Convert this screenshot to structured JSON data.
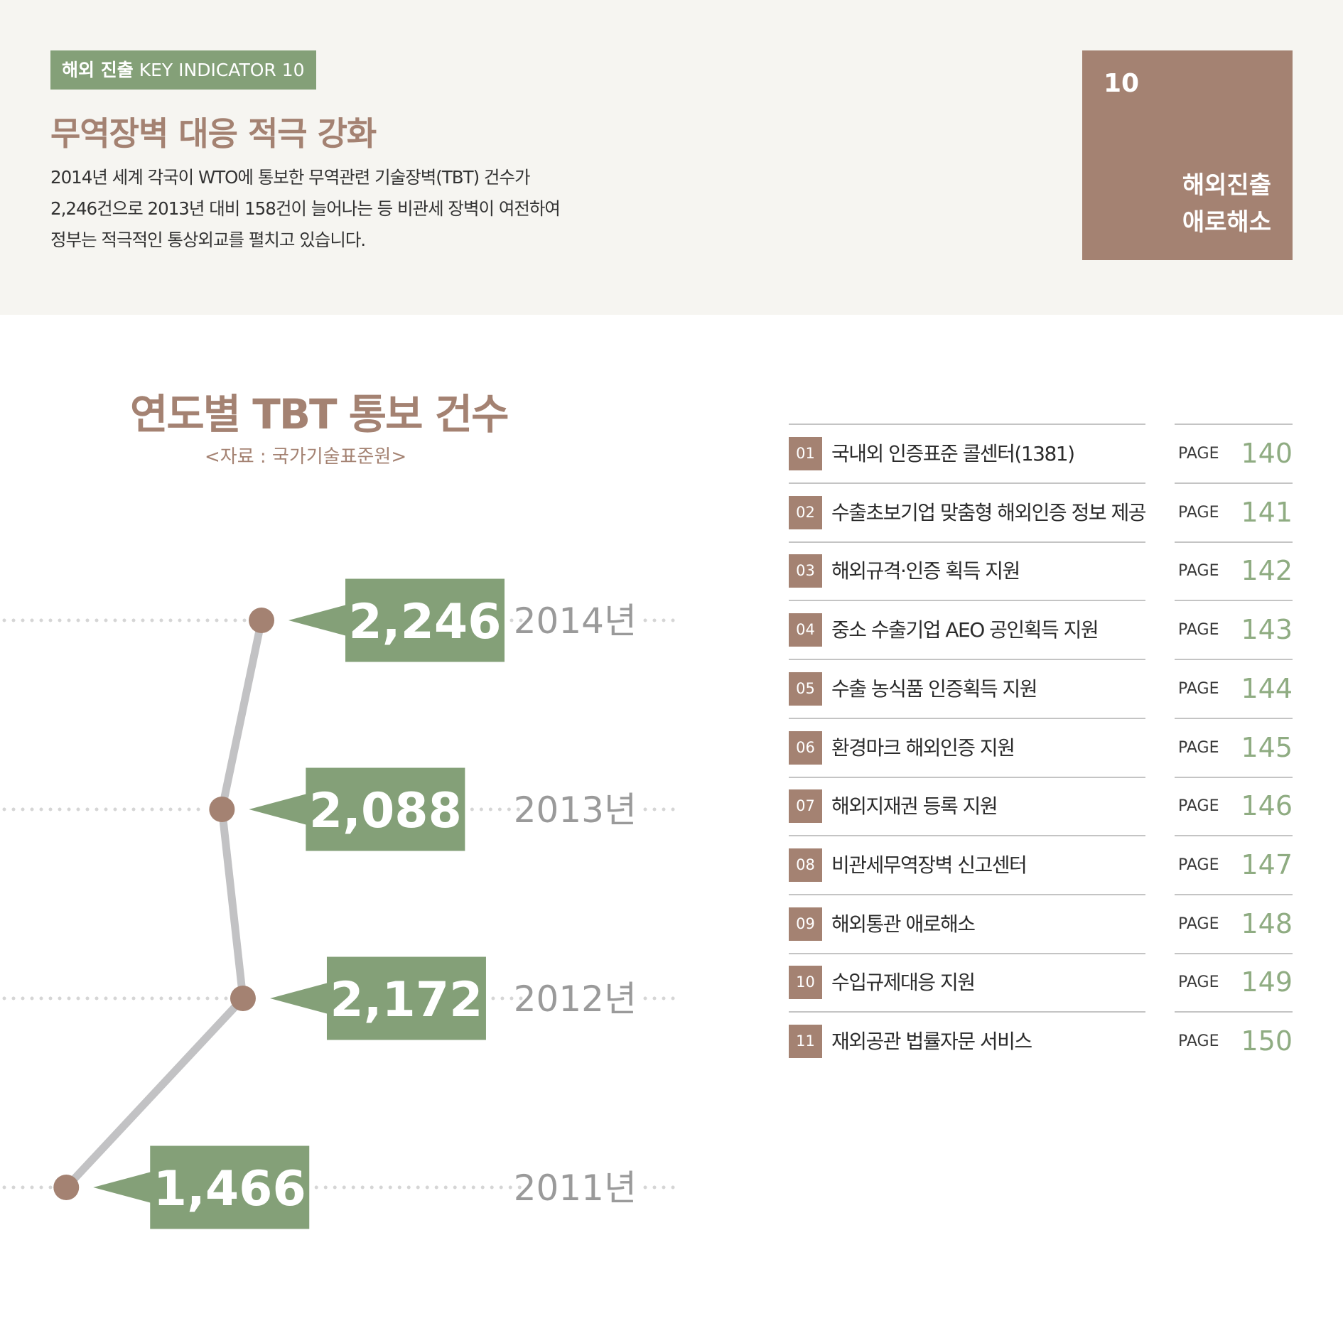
{
  "header": {
    "badge_bold": "해외 진출",
    "badge_rest": "KEY INDICATOR 10",
    "headline": "무역장벽 대응 적극 강화",
    "description": [
      "2014년 세계 각국이 WTO에 통보한 무역관련 기술장벽(TBT) 건수가",
      "2,246건으로 2013년 대비 158건이 늘어나는 등 비관세 장벽이 여전하여",
      "정부는 적극적인 통상외교를 펼치고 있습니다."
    ]
  },
  "section_box": {
    "number": "10",
    "title_line1": "해외진출",
    "title_line2": "애로해소"
  },
  "chart_data": {
    "type": "line",
    "title": "연도별 TBT 통보 건수",
    "source": "<자료 : 국가기술표준원>",
    "points": [
      {
        "year": "2014년",
        "value": 2246,
        "label": "2,246"
      },
      {
        "year": "2013년",
        "value": 2088,
        "label": "2,088"
      },
      {
        "year": "2012년",
        "value": 2172,
        "label": "2,172"
      },
      {
        "year": "2011년",
        "value": 1466,
        "label": "1,466"
      }
    ],
    "colors": {
      "line": "#c2c2c4",
      "dot": "#a48272",
      "label_box": "#84a078",
      "year": "#9a9a9a",
      "leader": "#d5d5d5"
    }
  },
  "index": {
    "page_label": "PAGE",
    "items": [
      {
        "num": "01",
        "title": "국내외 인증표준 콜센터(1381)",
        "page": "140"
      },
      {
        "num": "02",
        "title": "수출초보기업 맞춤형 해외인증 정보 제공",
        "page": "141"
      },
      {
        "num": "03",
        "title": "해외규격·인증 획득 지원",
        "page": "142"
      },
      {
        "num": "04",
        "title": "중소 수출기업 AEO 공인획득 지원",
        "page": "143"
      },
      {
        "num": "05",
        "title": "수출 농식품 인증획득 지원",
        "page": "144"
      },
      {
        "num": "06",
        "title": "환경마크 해외인증 지원",
        "page": "145"
      },
      {
        "num": "07",
        "title": "해외지재권 등록 지원",
        "page": "146"
      },
      {
        "num": "08",
        "title": "비관세무역장벽 신고센터",
        "page": "147"
      },
      {
        "num": "09",
        "title": "해외통관 애로해소",
        "page": "148"
      },
      {
        "num": "10",
        "title": "수입규제대응 지원",
        "page": "149"
      },
      {
        "num": "11",
        "title": "재외공관 법률자문 서비스",
        "page": "150"
      }
    ]
  }
}
